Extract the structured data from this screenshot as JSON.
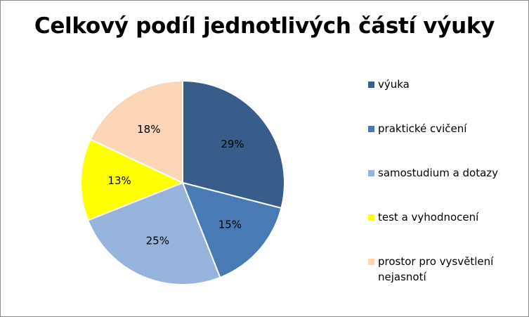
{
  "chart_data": {
    "type": "pie",
    "title": "Celkový podíl jednotlivých částí výuky",
    "categories": [
      "výuka",
      "praktické cvičení",
      "samostudium a dotazy",
      "test a vyhodnocení",
      "prostor pro vysvětlení nejasnotí"
    ],
    "values": [
      29,
      15,
      25,
      13,
      18
    ],
    "labels": [
      "29%",
      "15%",
      "25%",
      "13%",
      "18%"
    ],
    "colors": [
      "#385d8a",
      "#4a7ab6",
      "#95b3dd",
      "#ffff00",
      "#fbd5b5"
    ],
    "legend_position": "right",
    "start_angle_deg": 0,
    "direction": "clockwise"
  }
}
